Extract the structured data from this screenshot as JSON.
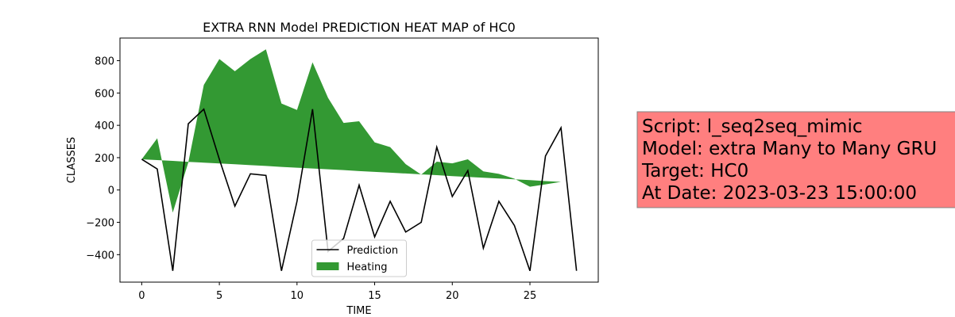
{
  "chart_data": {
    "type": "line",
    "title": "EXTRA RNN Model PREDICTION HEAT MAP of HC0",
    "x_label": "TIME",
    "y_label": "CLASSES",
    "x": [
      0,
      1,
      2,
      3,
      4,
      5,
      6,
      7,
      8,
      9,
      10,
      11,
      12,
      13,
      14,
      15,
      16,
      17,
      18,
      19,
      20,
      21,
      22,
      23,
      24,
      25,
      26,
      27,
      28
    ],
    "series": [
      {
        "name": "Prediction",
        "type": "line",
        "color": "#000000",
        "values": [
          190,
          130,
          -500,
          410,
          500,
          190,
          -100,
          100,
          90,
          -500,
          -70,
          500,
          -380,
          -300,
          30,
          -290,
          -70,
          -260,
          -200,
          265,
          -40,
          120,
          -360,
          -70,
          -220,
          -500,
          210,
          385,
          -500
        ]
      },
      {
        "name": "Heating",
        "type": "area",
        "color": "#339933",
        "values": [
          190,
          320,
          -140,
          170,
          650,
          810,
          735,
          810,
          870,
          535,
          495,
          790,
          570,
          415,
          425,
          295,
          265,
          160,
          95,
          175,
          165,
          190,
          115,
          100,
          70,
          20,
          35,
          50,
          45
        ],
        "base": [
          190,
          185,
          180,
          174,
          169,
          164,
          159,
          154,
          149,
          143,
          138,
          133,
          128,
          123,
          117,
          112,
          107,
          102,
          97,
          92,
          86,
          81,
          76,
          71,
          66,
          61,
          55,
          50,
          45
        ]
      }
    ],
    "xlim": [
      -1.4,
      29.4
    ],
    "xticks": [
      0,
      5,
      10,
      15,
      20,
      25
    ],
    "ylim": [
      -570,
      940
    ],
    "yticks": [
      {
        "value": -400,
        "label": "−400"
      },
      {
        "value": -200,
        "label": "−200"
      },
      0,
      200,
      400,
      600,
      800
    ],
    "legend": "lower center",
    "annotation": [
      "Script: l_seq2seq_mimic",
      "Model: extra Many to Many GRU",
      "Target: HC0",
      "At Date: 2023-03-23 15:00:00"
    ],
    "annotation_color": "#ff7f7f"
  }
}
